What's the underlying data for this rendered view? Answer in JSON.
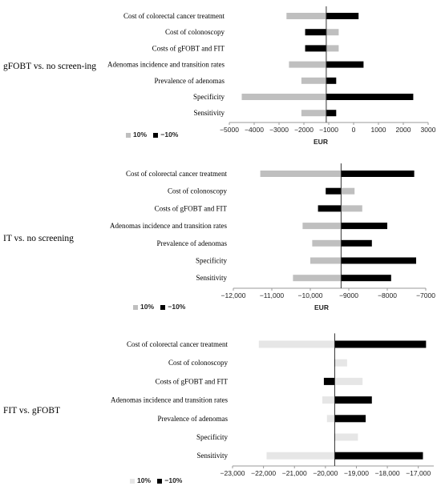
{
  "chart_data": [
    {
      "type": "bar",
      "subtype": "tornado",
      "panel_label": "gFOBT vs. no screen-ing",
      "base": -1100,
      "xlim": [
        -5000,
        3000
      ],
      "ticks": [
        -5000,
        -4000,
        -3000,
        -2000,
        -1000,
        0,
        1000,
        2000,
        3000
      ],
      "tick_labels": [
        "−5000",
        "−4000",
        "−3000",
        "−2000",
        "−1000",
        "0",
        "1000",
        "2000",
        "3000"
      ],
      "xlabel": "EUR",
      "categories": [
        "Cost of colorectal cancer treatment",
        "Cost of colonoscopy",
        "Costs of gFOBT and FIT",
        "Adenomas incidence and transition rates",
        "Prevalence of adenomas",
        "Specificity",
        "Sensitivity"
      ],
      "series": [
        {
          "name": "10%",
          "color": "#bfbfbf",
          "values": [
            -2700,
            -600,
            -600,
            -2600,
            -2100,
            -4500,
            -2100
          ]
        },
        {
          "name": "−10%",
          "color": "#000000",
          "values": [
            200,
            -1950,
            -1950,
            400,
            -700,
            2400,
            -700
          ]
        }
      ],
      "legend": {
        "position": "bottom-left",
        "items": [
          "10%",
          "−10%"
        ]
      }
    },
    {
      "type": "bar",
      "subtype": "tornado",
      "panel_label": "IT vs. no screening",
      "base": -9200,
      "xlim": [
        -12000,
        -7000
      ],
      "ticks": [
        -12000,
        -11000,
        -10000,
        -9000,
        -8000,
        -7000
      ],
      "tick_labels": [
        "−12,000",
        "−11,000",
        "−10,000",
        "−9000",
        "−8000",
        "−7000"
      ],
      "xlabel": "EUR",
      "categories": [
        "Cost of colorectal cancer treatment",
        "Cost of colonoscopy",
        "Costs of gFOBT and FIT",
        "Adenomas incidence and transition rates",
        "Prevalence of adenomas",
        "Specificity",
        "Sensitivity"
      ],
      "series": [
        {
          "name": "10%",
          "color": "#bfbfbf",
          "values": [
            -11300,
            -8850,
            -8650,
            -10200,
            -9950,
            -10000,
            -10450
          ]
        },
        {
          "name": "−10%",
          "color": "#000000",
          "values": [
            -7300,
            -9600,
            -9800,
            -8000,
            -8400,
            -7250,
            -7900
          ]
        }
      ],
      "legend": {
        "position": "bottom-left",
        "items": [
          "10%",
          "−10%"
        ]
      }
    },
    {
      "type": "bar",
      "subtype": "tornado",
      "panel_label": "FIT vs. gFOBT",
      "base": -19700,
      "xlim": [
        -23000,
        -16500
      ],
      "ticks": [
        -23000,
        -22000,
        -21000,
        -20000,
        -19000,
        -18000,
        -17000
      ],
      "tick_labels": [
        "−23,000",
        "−22,000",
        "−21,000",
        "−20,000",
        "−19,000",
        "−18,000",
        "−17,000"
      ],
      "xlabel": "",
      "categories": [
        "Cost of colorectal cancer treatment",
        "Cost of colonoscopy",
        "Costs of gFOBT and FIT",
        "Adenomas incidence and transition rates",
        "Prevalence of adenomas",
        "Specificity",
        "Sensitivity"
      ],
      "series": [
        {
          "name": "10%",
          "color": "#e6e6e6",
          "values": [
            -22150,
            -19300,
            -18800,
            -20100,
            -19950,
            -18950,
            -21900
          ]
        },
        {
          "name": "−10%",
          "color": "#000000",
          "values": [
            -16750,
            -19700,
            -20050,
            -18500,
            -18700,
            -19700,
            -16850
          ]
        }
      ],
      "legend": {
        "position": "bottom-left",
        "items": [
          "10%",
          "−10%"
        ]
      }
    }
  ]
}
